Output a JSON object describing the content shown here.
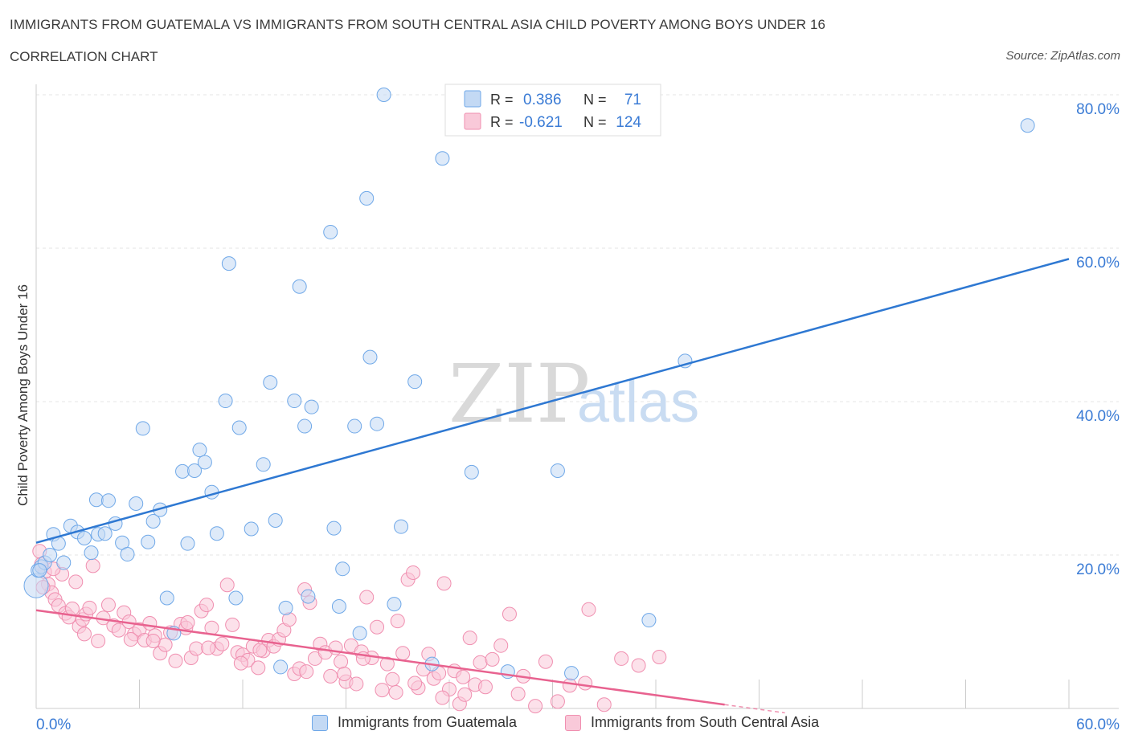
{
  "header": {
    "title": "IMMIGRANTS FROM GUATEMALA VS IMMIGRANTS FROM SOUTH CENTRAL ASIA CHILD POVERTY AMONG BOYS UNDER 16",
    "subtitle": "CORRELATION CHART",
    "source": "Source: ZipAtlas.com"
  },
  "watermark": {
    "part1": "ZIP",
    "part2": "atlas"
  },
  "stats_legend": {
    "rows": [
      {
        "r_label": "R =",
        "r_value": "0.386",
        "n_label": "N =",
        "n_value": "71",
        "color": "#6fa8e8"
      },
      {
        "r_label": "R =",
        "r_value": "-0.621",
        "n_label": "N =",
        "n_value": "124",
        "color": "#f08fb0"
      }
    ]
  },
  "bottom_legend": {
    "series1": "Immigrants from Guatemala",
    "series2": "Immigrants from South Central Asia"
  },
  "colors": {
    "blue_fill": "#c3d9f4",
    "blue_stroke": "#6fa8e8",
    "blue_line": "#2e78d2",
    "pink_fill": "#f9c9d9",
    "pink_stroke": "#f08fb0",
    "pink_line": "#e8628f",
    "axis_text": "#3a7bd5"
  },
  "chart_data": {
    "type": "scatter",
    "title": "IMMIGRANTS FROM GUATEMALA VS IMMIGRANTS FROM SOUTH CENTRAL ASIA CHILD POVERTY AMONG BOYS UNDER 16",
    "xlabel": "",
    "ylabel": "Child Poverty Among Boys Under 16",
    "xlim": [
      0,
      60
    ],
    "ylim": [
      0,
      80
    ],
    "x_tick_labels": [
      "0.0%",
      "60.0%"
    ],
    "y_tick_values": [
      20,
      40,
      60,
      80
    ],
    "y_tick_labels": [
      "20.0%",
      "40.0%",
      "60.0%",
      "80.0%"
    ],
    "series": [
      {
        "name": "Immigrants from Guatemala",
        "R": 0.386,
        "N": 71,
        "trend": {
          "x": [
            0,
            60
          ],
          "y": [
            21.6,
            58.6
          ]
        },
        "points": [
          [
            0.0,
            16.0
          ],
          [
            0.1,
            18.0
          ],
          [
            0.3,
            18.5
          ],
          [
            0.5,
            19.0
          ],
          [
            0.8,
            20.0
          ],
          [
            1.0,
            22.7
          ],
          [
            1.3,
            21.5
          ],
          [
            1.6,
            19.0
          ],
          [
            2.0,
            23.8
          ],
          [
            2.4,
            23.0
          ],
          [
            2.8,
            22.2
          ],
          [
            3.2,
            20.3
          ],
          [
            3.5,
            27.2
          ],
          [
            3.6,
            22.7
          ],
          [
            4.2,
            27.1
          ],
          [
            4.6,
            24.1
          ],
          [
            5.0,
            21.6
          ],
          [
            5.3,
            20.1
          ],
          [
            5.8,
            26.7
          ],
          [
            6.2,
            36.5
          ],
          [
            6.5,
            21.7
          ],
          [
            6.8,
            24.4
          ],
          [
            7.2,
            25.9
          ],
          [
            7.6,
            14.4
          ],
          [
            8.0,
            9.8
          ],
          [
            8.5,
            30.9
          ],
          [
            8.8,
            21.5
          ],
          [
            9.2,
            31.0
          ],
          [
            9.5,
            33.7
          ],
          [
            9.8,
            32.1
          ],
          [
            10.2,
            28.2
          ],
          [
            10.5,
            22.8
          ],
          [
            11.0,
            40.1
          ],
          [
            11.2,
            58.0
          ],
          [
            11.6,
            14.4
          ],
          [
            11.8,
            36.6
          ],
          [
            12.5,
            23.4
          ],
          [
            13.2,
            31.8
          ],
          [
            13.6,
            42.5
          ],
          [
            13.9,
            24.5
          ],
          [
            14.2,
            5.4
          ],
          [
            14.5,
            13.1
          ],
          [
            15.0,
            40.1
          ],
          [
            15.3,
            55.0
          ],
          [
            15.6,
            36.8
          ],
          [
            15.8,
            14.6
          ],
          [
            16.0,
            39.3
          ],
          [
            17.1,
            62.1
          ],
          [
            17.3,
            23.5
          ],
          [
            17.6,
            13.3
          ],
          [
            17.8,
            18.2
          ],
          [
            18.5,
            36.8
          ],
          [
            18.8,
            9.8
          ],
          [
            19.2,
            66.5
          ],
          [
            19.4,
            45.8
          ],
          [
            19.8,
            37.1
          ],
          [
            20.2,
            80.0
          ],
          [
            20.8,
            13.6
          ],
          [
            21.2,
            23.7
          ],
          [
            22.0,
            42.6
          ],
          [
            23.0,
            5.8
          ],
          [
            23.6,
            71.7
          ],
          [
            25.3,
            30.8
          ],
          [
            27.4,
            4.8
          ],
          [
            30.3,
            31.0
          ],
          [
            31.1,
            4.6
          ],
          [
            35.6,
            11.5
          ],
          [
            37.7,
            45.3
          ],
          [
            57.6,
            76.0
          ],
          [
            0.2,
            18.0
          ],
          [
            4.0,
            22.8
          ]
        ]
      },
      {
        "name": "Immigrants from South Central Asia",
        "R": -0.621,
        "N": 124,
        "trend": {
          "x": [
            0,
            40
          ],
          "y": [
            12.8,
            0.5
          ]
        },
        "points": [
          [
            0.2,
            20.5
          ],
          [
            0.3,
            18.8
          ],
          [
            0.5,
            17.8
          ],
          [
            0.7,
            16.2
          ],
          [
            0.9,
            15.1
          ],
          [
            1.1,
            14.2
          ],
          [
            1.3,
            13.4
          ],
          [
            1.5,
            17.5
          ],
          [
            1.7,
            12.4
          ],
          [
            1.9,
            11.9
          ],
          [
            2.1,
            13.0
          ],
          [
            2.3,
            16.5
          ],
          [
            2.5,
            10.7
          ],
          [
            2.7,
            11.6
          ],
          [
            2.9,
            12.3
          ],
          [
            3.1,
            13.1
          ],
          [
            3.3,
            18.6
          ],
          [
            3.6,
            8.8
          ],
          [
            3.9,
            11.8
          ],
          [
            4.2,
            13.5
          ],
          [
            4.5,
            10.8
          ],
          [
            4.8,
            10.2
          ],
          [
            5.1,
            12.5
          ],
          [
            5.4,
            11.3
          ],
          [
            5.7,
            9.7
          ],
          [
            6.0,
            10.3
          ],
          [
            6.3,
            8.9
          ],
          [
            6.6,
            11.1
          ],
          [
            6.9,
            9.5
          ],
          [
            7.2,
            7.2
          ],
          [
            7.5,
            8.3
          ],
          [
            7.8,
            9.9
          ],
          [
            8.1,
            6.2
          ],
          [
            8.4,
            11.0
          ],
          [
            8.7,
            10.5
          ],
          [
            9.0,
            6.6
          ],
          [
            9.3,
            7.8
          ],
          [
            9.6,
            12.7
          ],
          [
            9.9,
            13.5
          ],
          [
            10.2,
            10.5
          ],
          [
            10.5,
            7.8
          ],
          [
            10.8,
            8.4
          ],
          [
            11.1,
            16.1
          ],
          [
            11.4,
            10.9
          ],
          [
            11.7,
            7.3
          ],
          [
            12.0,
            7.0
          ],
          [
            12.3,
            6.3
          ],
          [
            12.6,
            8.1
          ],
          [
            12.9,
            5.3
          ],
          [
            13.2,
            7.5
          ],
          [
            13.5,
            8.9
          ],
          [
            13.8,
            8.1
          ],
          [
            14.1,
            9.0
          ],
          [
            14.4,
            10.2
          ],
          [
            14.7,
            11.6
          ],
          [
            15.0,
            4.5
          ],
          [
            15.3,
            5.2
          ],
          [
            15.6,
            15.5
          ],
          [
            15.9,
            13.8
          ],
          [
            16.2,
            6.5
          ],
          [
            16.5,
            8.4
          ],
          [
            16.8,
            7.3
          ],
          [
            17.1,
            4.2
          ],
          [
            17.4,
            7.9
          ],
          [
            17.7,
            6.1
          ],
          [
            18.0,
            3.5
          ],
          [
            18.3,
            8.2
          ],
          [
            18.6,
            3.2
          ],
          [
            18.9,
            7.4
          ],
          [
            19.2,
            14.5
          ],
          [
            19.5,
            6.6
          ],
          [
            19.8,
            10.6
          ],
          [
            20.1,
            2.4
          ],
          [
            20.4,
            5.8
          ],
          [
            20.7,
            3.8
          ],
          [
            21.0,
            11.4
          ],
          [
            21.3,
            7.2
          ],
          [
            21.6,
            16.8
          ],
          [
            21.9,
            17.7
          ],
          [
            22.2,
            2.7
          ],
          [
            22.5,
            5.1
          ],
          [
            22.8,
            7.1
          ],
          [
            23.1,
            3.9
          ],
          [
            23.4,
            4.6
          ],
          [
            23.7,
            16.3
          ],
          [
            24.0,
            2.5
          ],
          [
            24.3,
            4.9
          ],
          [
            24.6,
            0.6
          ],
          [
            24.9,
            1.8
          ],
          [
            25.2,
            9.2
          ],
          [
            25.5,
            3.1
          ],
          [
            25.8,
            6.0
          ],
          [
            26.1,
            2.8
          ],
          [
            27.0,
            8.2
          ],
          [
            27.5,
            12.3
          ],
          [
            28.3,
            4.2
          ],
          [
            29.0,
            0.3
          ],
          [
            29.6,
            6.1
          ],
          [
            30.3,
            0.9
          ],
          [
            31.0,
            3.0
          ],
          [
            32.1,
            12.9
          ],
          [
            33.0,
            0.5
          ],
          [
            34.0,
            6.5
          ],
          [
            35.0,
            5.6
          ],
          [
            36.2,
            6.7
          ],
          [
            0.4,
            15.8
          ],
          [
            1.0,
            18.2
          ],
          [
            2.8,
            9.7
          ],
          [
            5.5,
            9.0
          ],
          [
            6.8,
            8.8
          ],
          [
            8.8,
            11.2
          ],
          [
            10.0,
            7.9
          ],
          [
            11.9,
            5.9
          ],
          [
            13.0,
            7.6
          ],
          [
            15.7,
            4.8
          ],
          [
            17.9,
            4.5
          ],
          [
            19.0,
            6.5
          ],
          [
            20.9,
            2.1
          ],
          [
            22.0,
            3.3
          ],
          [
            23.6,
            1.4
          ],
          [
            24.8,
            4.1
          ],
          [
            26.5,
            6.4
          ],
          [
            28.0,
            1.9
          ],
          [
            31.9,
            3.3
          ]
        ]
      }
    ]
  }
}
